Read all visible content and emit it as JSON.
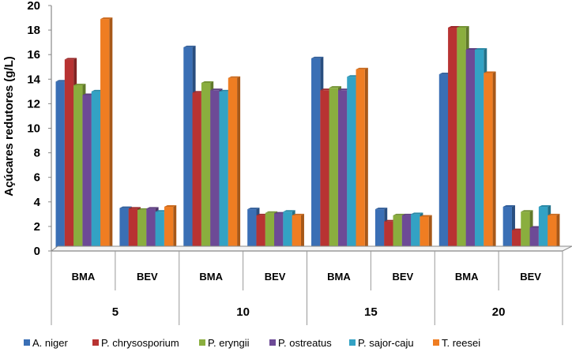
{
  "chart_data": {
    "type": "bar",
    "title": "",
    "xlabel": "",
    "ylabel": "Açúcares redutores (g/L)",
    "ylim": [
      0,
      20
    ],
    "yticks": [
      0,
      2,
      4,
      6,
      8,
      10,
      12,
      14,
      16,
      18,
      20
    ],
    "groups": [
      "5",
      "10",
      "15",
      "20"
    ],
    "subcategories": [
      "BMA",
      "BEV"
    ],
    "categories": [
      "BMA",
      "BEV",
      "BMA",
      "BEV",
      "BMA",
      "BEV",
      "BMA",
      "BEV"
    ],
    "legend_position": "bottom",
    "grid": false,
    "series": [
      {
        "name": "A. niger",
        "color": "#3a6fb5",
        "values": [
          13.8,
          3.5,
          16.6,
          3.4,
          15.7,
          3.4,
          14.4,
          3.6
        ]
      },
      {
        "name": "P. chrysosporium",
        "color": "#b83332",
        "values": [
          15.6,
          3.45,
          12.9,
          2.9,
          13.1,
          2.4,
          18.2,
          1.7
        ]
      },
      {
        "name": "P. eryngii",
        "color": "#8aae3e",
        "values": [
          13.5,
          3.35,
          13.7,
          3.1,
          13.3,
          2.9,
          18.2,
          3.2
        ]
      },
      {
        "name": "P. ostreatus",
        "color": "#6d4a96",
        "values": [
          12.7,
          3.45,
          13.1,
          3.05,
          13.1,
          2.9,
          16.4,
          1.9
        ]
      },
      {
        "name": "P. sajor-caju",
        "color": "#33a2c4",
        "values": [
          13.0,
          3.2,
          13.0,
          3.2,
          14.2,
          3.0,
          16.4,
          3.6
        ]
      },
      {
        "name": "T. reesei",
        "color": "#ef7d22",
        "values": [
          18.9,
          3.6,
          14.1,
          2.9,
          14.8,
          2.8,
          14.5,
          2.9
        ]
      }
    ]
  }
}
